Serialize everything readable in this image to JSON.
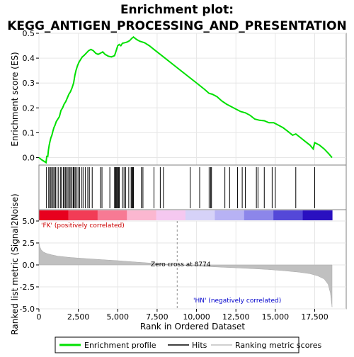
{
  "chart_data": {
    "type": "line",
    "title_line1": "Enrichment plot:",
    "title_line2": "KEGG_ANTIGEN_PROCESSING_AND_PRESENTATION",
    "top_panel": {
      "ylabel": "Enrichment score (ES)",
      "ylim": [
        -0.03,
        0.5
      ],
      "yticks": [
        "0.0",
        "0.1",
        "0.2",
        "0.3",
        "0.4",
        "0.5"
      ],
      "ytick_values": [
        0.0,
        0.1,
        0.2,
        0.3,
        0.4,
        0.5
      ],
      "series_name": "Enrichment profile",
      "line_color": "#00e000",
      "points": [
        [
          0,
          0.0
        ],
        [
          200,
          -0.01
        ],
        [
          450,
          -0.02
        ],
        [
          500,
          0.005
        ],
        [
          560,
          0.005
        ],
        [
          600,
          0.03
        ],
        [
          650,
          0.05
        ],
        [
          700,
          0.065
        ],
        [
          760,
          0.08
        ],
        [
          820,
          0.09
        ],
        [
          880,
          0.105
        ],
        [
          950,
          0.12
        ],
        [
          1020,
          0.13
        ],
        [
          1100,
          0.145
        ],
        [
          1200,
          0.155
        ],
        [
          1300,
          0.165
        ],
        [
          1400,
          0.19
        ],
        [
          1500,
          0.2
        ],
        [
          1600,
          0.215
        ],
        [
          1700,
          0.225
        ],
        [
          1800,
          0.24
        ],
        [
          1900,
          0.255
        ],
        [
          2000,
          0.265
        ],
        [
          2100,
          0.28
        ],
        [
          2200,
          0.3
        ],
        [
          2280,
          0.33
        ],
        [
          2350,
          0.35
        ],
        [
          2450,
          0.37
        ],
        [
          2550,
          0.385
        ],
        [
          2650,
          0.395
        ],
        [
          2750,
          0.405
        ],
        [
          2850,
          0.41
        ],
        [
          3000,
          0.42
        ],
        [
          3150,
          0.43
        ],
        [
          3300,
          0.435
        ],
        [
          3450,
          0.43
        ],
        [
          3600,
          0.42
        ],
        [
          3750,
          0.415
        ],
        [
          3900,
          0.42
        ],
        [
          4050,
          0.425
        ],
        [
          4200,
          0.415
        ],
        [
          4400,
          0.408
        ],
        [
          4600,
          0.405
        ],
        [
          4800,
          0.41
        ],
        [
          4900,
          0.43
        ],
        [
          5000,
          0.45
        ],
        [
          5100,
          0.455
        ],
        [
          5200,
          0.45
        ],
        [
          5300,
          0.46
        ],
        [
          5450,
          0.462
        ],
        [
          5600,
          0.465
        ],
        [
          5750,
          0.47
        ],
        [
          5900,
          0.48
        ],
        [
          6000,
          0.485
        ],
        [
          6200,
          0.475
        ],
        [
          6400,
          0.468
        ],
        [
          6700,
          0.462
        ],
        [
          7000,
          0.45
        ],
        [
          7300,
          0.435
        ],
        [
          7700,
          0.415
        ],
        [
          8100,
          0.395
        ],
        [
          8500,
          0.375
        ],
        [
          8900,
          0.355
        ],
        [
          9300,
          0.335
        ],
        [
          9700,
          0.315
        ],
        [
          10100,
          0.295
        ],
        [
          10500,
          0.275
        ],
        [
          10800,
          0.258
        ],
        [
          11000,
          0.255
        ],
        [
          11300,
          0.245
        ],
        [
          11600,
          0.228
        ],
        [
          11900,
          0.215
        ],
        [
          12200,
          0.205
        ],
        [
          12500,
          0.195
        ],
        [
          12800,
          0.185
        ],
        [
          13100,
          0.18
        ],
        [
          13400,
          0.17
        ],
        [
          13700,
          0.155
        ],
        [
          14000,
          0.15
        ],
        [
          14300,
          0.148
        ],
        [
          14600,
          0.14
        ],
        [
          14900,
          0.14
        ],
        [
          15200,
          0.13
        ],
        [
          15500,
          0.12
        ],
        [
          15800,
          0.105
        ],
        [
          16100,
          0.09
        ],
        [
          16300,
          0.095
        ],
        [
          16600,
          0.08
        ],
        [
          16900,
          0.065
        ],
        [
          17200,
          0.05
        ],
        [
          17400,
          0.035
        ],
        [
          17500,
          0.06
        ],
        [
          17800,
          0.05
        ],
        [
          18100,
          0.035
        ],
        [
          18400,
          0.015
        ],
        [
          18600,
          0.0
        ]
      ]
    },
    "hits_panel": {
      "hit_positions": [
        480,
        620,
        700,
        760,
        830,
        900,
        980,
        1050,
        1150,
        1250,
        1380,
        1450,
        1550,
        1650,
        1700,
        1780,
        1850,
        1950,
        2020,
        2100,
        2180,
        2230,
        2300,
        2380,
        2480,
        2580,
        2700,
        2800,
        2950,
        3100,
        3200,
        3380,
        3900,
        4000,
        4500,
        4800,
        4850,
        4900,
        4950,
        5000,
        5050,
        5100,
        5300,
        5400,
        5500,
        5700,
        5850,
        5900,
        5950,
        6000,
        6500,
        6600,
        7300,
        7700,
        7900,
        9600,
        10200,
        10800,
        10900,
        10950,
        11800,
        12100,
        12600,
        12900,
        13100,
        13800,
        13900,
        14300,
        14800,
        15000,
        16300,
        17500
      ]
    },
    "gradient_colors": [
      "#e8001e",
      "#f23c56",
      "#f77a94",
      "#fbb7d0",
      "#f5c8f0",
      "#d6d2f8",
      "#b7b2f4",
      "#8c86ea",
      "#5448d8",
      "#2a10c0"
    ],
    "bottom_panel": {
      "ylabel": "Ranked list metric (Signal2Noise)",
      "xlabel": "Rank in Ordered Dataset",
      "ylim": [
        -5.0,
        5.0
      ],
      "yticks": [
        "5.0",
        "2.5",
        "0.0",
        "-2.5",
        "-5.0"
      ],
      "ytick_values": [
        5.0,
        2.5,
        0.0,
        -2.5,
        -5.0
      ],
      "xlim": [
        0,
        19500
      ],
      "xticks": [
        "0",
        "2,500",
        "5,000",
        "7,500",
        "10,000",
        "12,500",
        "15,000",
        "17,500"
      ],
      "xtick_values": [
        0,
        2500,
        5000,
        7500,
        10000,
        12500,
        15000,
        17500
      ],
      "positive_label": "'FK' (positively correlated)",
      "negative_label": "'HN' (negatively correlated)",
      "zero_cross_label": "Zero cross at 8774",
      "zero_cross": 8774,
      "n_genes": 18600,
      "metric_profile": [
        [
          0,
          2.6
        ],
        [
          50,
          2.1
        ],
        [
          150,
          1.7
        ],
        [
          300,
          1.45
        ],
        [
          500,
          1.3
        ],
        [
          800,
          1.15
        ],
        [
          1200,
          1.0
        ],
        [
          2000,
          0.85
        ],
        [
          3000,
          0.72
        ],
        [
          4000,
          0.6
        ],
        [
          5000,
          0.48
        ],
        [
          6000,
          0.35
        ],
        [
          7000,
          0.22
        ],
        [
          8000,
          0.1
        ],
        [
          8774,
          0.0
        ],
        [
          9500,
          -0.08
        ],
        [
          10500,
          -0.17
        ],
        [
          11500,
          -0.25
        ],
        [
          12500,
          -0.33
        ],
        [
          13500,
          -0.42
        ],
        [
          14500,
          -0.52
        ],
        [
          15500,
          -0.65
        ],
        [
          16500,
          -0.82
        ],
        [
          17200,
          -1.0
        ],
        [
          17700,
          -1.25
        ],
        [
          18100,
          -1.6
        ],
        [
          18350,
          -2.2
        ],
        [
          18500,
          -3.2
        ],
        [
          18600,
          -4.8
        ]
      ]
    },
    "legend": {
      "items": [
        {
          "label": "Enrichment profile",
          "color": "#00e000",
          "kind": "line"
        },
        {
          "label": "Hits",
          "color": "#000000",
          "kind": "line"
        },
        {
          "label": "Ranking metric scores",
          "color": "#c0c0c0",
          "kind": "line"
        }
      ]
    }
  }
}
